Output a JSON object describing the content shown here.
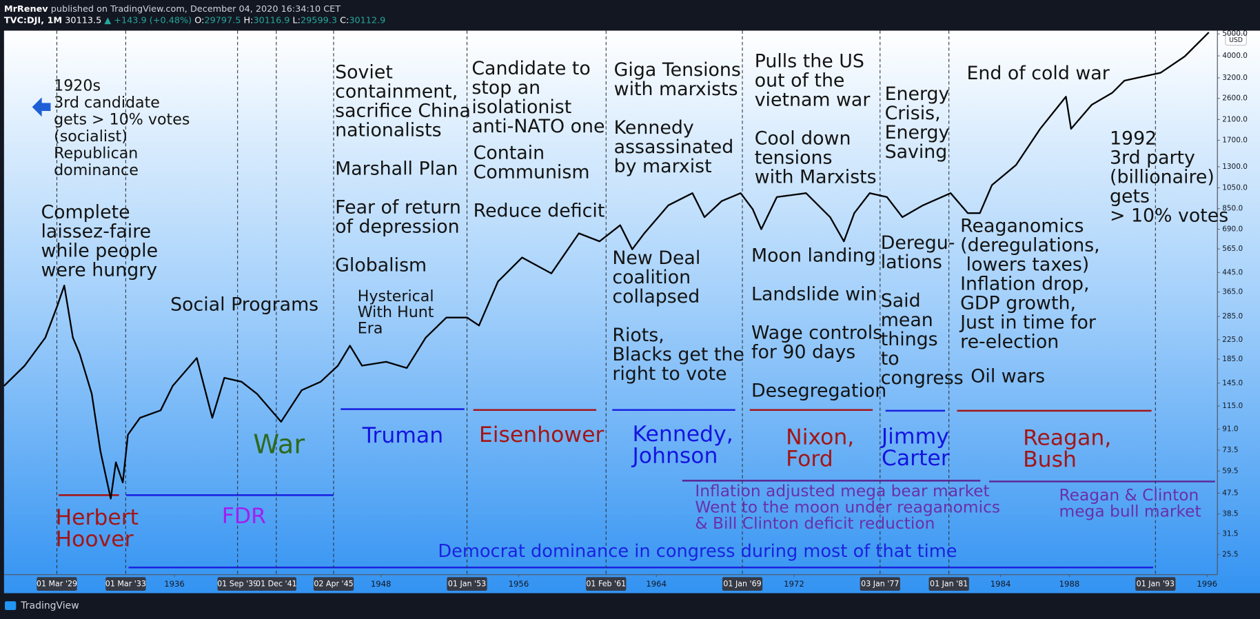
{
  "header": {
    "author": "MrRenev",
    "published": "published on TradingView.com, December 04, 2020 16:34:10 CET",
    "symbol": "TVC:DJI, 1M",
    "last": "30113.5",
    "change": "▲ +143.9 (+0.48%)",
    "ohlc": [
      {
        "key": "O:",
        "value": "29797.5"
      },
      {
        "key": "H:",
        "value": "30116.9"
      },
      {
        "key": "L:",
        "value": "29599.3"
      },
      {
        "key": "C:",
        "value": "30112.9"
      }
    ]
  },
  "chart_data": {
    "type": "line",
    "color": "#000000",
    "log_scale": true,
    "axis_unit": "USD",
    "x": [
      1926.1,
      1927.3,
      1928.5,
      1929.2,
      1929.6,
      1930.1,
      1930.5,
      1931.2,
      1931.7,
      1932.3,
      1932.6,
      1933.0,
      1933.3,
      1934.0,
      1935.2,
      1935.9,
      1937.3,
      1938.2,
      1938.9,
      1939.9,
      1940.8,
      1942.2,
      1943.4,
      1944.5,
      1945.5,
      1946.2,
      1946.9,
      1948.3,
      1949.5,
      1950.6,
      1951.8,
      1953.0,
      1953.7,
      1954.8,
      1956.2,
      1957.9,
      1959.5,
      1960.7,
      1961.9,
      1962.6,
      1963.3,
      1964.7,
      1966.1,
      1966.8,
      1967.8,
      1968.9,
      1969.6,
      1970.1,
      1971.0,
      1972.7,
      1974.1,
      1974.9,
      1975.5,
      1976.4,
      1977.4,
      1978.3,
      1979.5,
      1981.1,
      1982.1,
      1982.8,
      1983.5,
      1984.9,
      1986.3,
      1987.8,
      1988.1,
      1989.3,
      1990.5,
      1991.2,
      1993.3,
      1994.7,
      1996.1
    ],
    "values": [
      141,
      173,
      230,
      318,
      390,
      230,
      195,
      130,
      73,
      45,
      65,
      53,
      86,
      102,
      110,
      141,
      187,
      102,
      153,
      147,
      130,
      98,
      135,
      147,
      173,
      212,
      173,
      180,
      169,
      230,
      282,
      282,
      260,
      406,
      518,
      441,
      662,
      610,
      719,
      563,
      662,
      880,
      995,
      780,
      918,
      995,
      846,
      690,
      956,
      995,
      780,
      610,
      812,
      995,
      956,
      780,
      880,
      995,
      812,
      812,
      1079,
      1323,
      1909,
      2645,
      1909,
      2437,
      2753,
      3111,
      3370,
      3975,
      5076
    ],
    "xlim": [
      1926.1,
      1996.6
    ],
    "ylim": [
      20.8,
      5165
    ],
    "xticks": [
      1936,
      1948,
      1956,
      1964,
      1972,
      1984,
      1988,
      1996
    ],
    "event_lines": [
      {
        "value": 1929.17,
        "label": "01 Mar '29"
      },
      {
        "value": 1933.17,
        "label": "01 Mar '33"
      },
      {
        "value": 1939.67,
        "label": "01 Sep '39"
      },
      {
        "value": 1941.92,
        "label": "01 Dec '41"
      },
      {
        "value": 1945.25,
        "label": "02 Apr '45"
      },
      {
        "value": 1953.0,
        "label": "01 Jan '53"
      },
      {
        "value": 1961.08,
        "label": "01 Feb '61"
      },
      {
        "value": 1969.0,
        "label": "01 Jan '69"
      },
      {
        "value": 1977.0,
        "label": "03 Jan '77"
      },
      {
        "value": 1981.0,
        "label": "01 Jan '81"
      },
      {
        "value": 1993.0,
        "label": "01 Jan '93"
      }
    ],
    "yticks": [
      25.5,
      31.5,
      38.5,
      47.5,
      59.5,
      73.5,
      {
        "value": 91,
        "label": "91.0"
      },
      {
        "value": 115,
        "label": "115.0"
      },
      {
        "value": 145,
        "label": "145.0"
      },
      {
        "value": 185,
        "label": "185.0"
      },
      {
        "value": 225,
        "label": "225.0"
      },
      {
        "value": 285,
        "label": "285.0"
      },
      {
        "value": 365,
        "label": "365.0"
      },
      {
        "value": 445,
        "label": "445.0"
      },
      {
        "value": 565,
        "label": "565.0"
      },
      {
        "value": 690,
        "label": "690.0"
      },
      {
        "value": 850,
        "label": "850.0"
      },
      {
        "value": 1050,
        "label": "1050.0"
      },
      {
        "value": 1300,
        "label": "1300.0"
      },
      {
        "value": 1700,
        "label": "1700.0"
      },
      {
        "value": 2100,
        "label": "2100.0"
      },
      {
        "value": 2600,
        "label": "2600.0"
      },
      {
        "value": 3200,
        "label": "3200.0"
      },
      {
        "value": 4000,
        "label": "4000.0"
      },
      {
        "value": 5000,
        "label": "5000.0"
      }
    ],
    "annotations": [
      {
        "lines": [
          "1920s",
          "3rd candidate",
          "gets > 10% votes",
          "(socialist)",
          "Republican",
          "dominance"
        ],
        "color": "#131313"
      },
      {
        "lines": [
          "Complete",
          "laissez-faire",
          "while people",
          "were hungry"
        ],
        "color": "#131313"
      },
      {
        "lines": [
          "Social Programs"
        ],
        "color": "#131313"
      },
      {
        "lines": [
          "Soviet",
          "containment,",
          "sacrifice China",
          "nationalists"
        ],
        "color": "#131313"
      },
      {
        "lines": [
          "Marshall Plan"
        ],
        "color": "#131313"
      },
      {
        "lines": [
          "Fear of return",
          "of depression"
        ],
        "color": "#131313"
      },
      {
        "lines": [
          "Globalism"
        ],
        "color": "#131313"
      },
      {
        "lines": [
          "Hysterical",
          "With Hunt",
          "Era"
        ],
        "color": "#131313"
      },
      {
        "lines": [
          "Candidate to",
          "stop an",
          "isolationist",
          "anti-NATO one"
        ],
        "color": "#131313"
      },
      {
        "lines": [
          "Contain",
          "Communism"
        ],
        "color": "#131313"
      },
      {
        "lines": [
          "Reduce deficit"
        ],
        "color": "#131313"
      },
      {
        "lines": [
          "Giga Tensions",
          "with marxists"
        ],
        "color": "#131313"
      },
      {
        "lines": [
          "Kennedy",
          "assassinated",
          "by marxist"
        ],
        "color": "#131313"
      },
      {
        "lines": [
          "New Deal",
          "coalition",
          "collapsed"
        ],
        "color": "#131313"
      },
      {
        "lines": [
          "Riots,",
          "Blacks get the",
          "right to vote"
        ],
        "color": "#131313"
      },
      {
        "lines": [
          "Pulls the US",
          "out of the",
          "vietnam war"
        ],
        "color": "#131313"
      },
      {
        "lines": [
          "Cool down",
          "tensions",
          "with Marxists"
        ],
        "color": "#131313"
      },
      {
        "lines": [
          "Moon landing"
        ],
        "color": "#131313"
      },
      {
        "lines": [
          "Landslide win"
        ],
        "color": "#131313"
      },
      {
        "lines": [
          "Wage controls",
          "for 90 days"
        ],
        "color": "#131313"
      },
      {
        "lines": [
          "Desegregation"
        ],
        "color": "#131313"
      },
      {
        "lines": [
          "Energy",
          "Crisis,",
          "Energy",
          "Saving"
        ],
        "color": "#131313"
      },
      {
        "lines": [
          "Deregu-",
          "lations"
        ],
        "color": "#131313"
      },
      {
        "lines": [
          "Said",
          "mean",
          "things",
          "to",
          "congress"
        ],
        "color": "#131313"
      },
      {
        "lines": [
          "End of cold war"
        ],
        "color": "#131313"
      },
      {
        "lines": [
          "1992",
          "3rd party",
          "(billionaire)",
          "gets",
          "> 10% votes"
        ],
        "color": "#131313"
      },
      {
        "lines": [
          "Reaganomics",
          "(deregulations,",
          " lowers taxes)",
          "Inflation drop,",
          "GDP growth,",
          "Just in time for",
          "re-election"
        ],
        "color": "#131313"
      },
      {
        "lines": [
          "Oil wars"
        ],
        "color": "#131313"
      },
      {
        "lines": [
          "War"
        ],
        "color": "#2d6a1e"
      },
      {
        "lines": [
          "Truman"
        ],
        "color": "#1414e0"
      },
      {
        "lines": [
          "Eisenhower"
        ],
        "color": "#a31515"
      },
      {
        "lines": [
          "Kennedy,",
          "Johnson"
        ],
        "color": "#1414e0"
      },
      {
        "lines": [
          "Nixon,",
          "Ford"
        ],
        "color": "#a31515"
      },
      {
        "lines": [
          "Jimmy",
          "Carter"
        ],
        "color": "#1414e0"
      },
      {
        "lines": [
          "Reagan,",
          "Bush"
        ],
        "color": "#a31515"
      },
      {
        "lines": [
          "Herbert",
          "Hoover"
        ],
        "color": "#a31515"
      },
      {
        "lines": [
          "FDR"
        ],
        "color": "#a020f0"
      },
      {
        "lines": [
          "Inflation adjusted mega bear market",
          "Went to the moon under reaganomics",
          "& Bill Clinton deficit reduction"
        ],
        "color": "#6a2fa8"
      },
      {
        "lines": [
          "Reagan & Clinton",
          "mega bull market"
        ],
        "color": "#6a2fa8"
      },
      {
        "lines": [
          "Democrat dominance in congress during most of that time"
        ],
        "color": "#1a22e0"
      }
    ]
  },
  "footer": {
    "brand": "TradingView"
  }
}
